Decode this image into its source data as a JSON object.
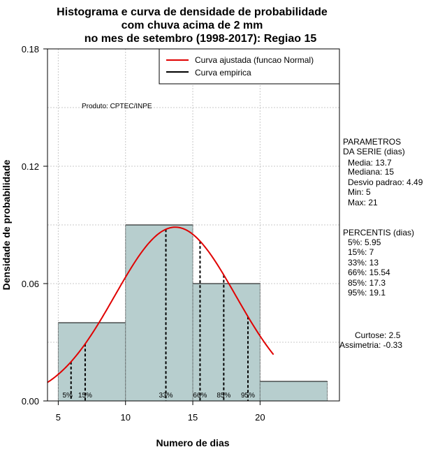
{
  "chart_data": {
    "type": "bar",
    "title_lines": [
      "Histograma e curva de densidade de probabilidade",
      "com chuva acima de 2 mm",
      "no mes de setembro (1998-2017): Regiao 15"
    ],
    "xlabel": "Numero de dias",
    "ylabel": "Densidade de probabilidade",
    "xlim": [
      4.2,
      25.9
    ],
    "ylim": [
      0,
      0.18
    ],
    "x_ticks": [
      5,
      10,
      15,
      20
    ],
    "x_tick_labels": [
      "5",
      "10",
      "15",
      "20"
    ],
    "y_ticks": [
      0,
      0.06,
      0.12,
      0.18
    ],
    "y_tick_labels": [
      "0.00",
      "0.06",
      "0.12",
      "0.18"
    ],
    "grid": true,
    "bins": [
      {
        "start": 5,
        "end": 10,
        "density": 0.04
      },
      {
        "start": 10,
        "end": 15,
        "density": 0.09
      },
      {
        "start": 15,
        "end": 20,
        "density": 0.06
      },
      {
        "start": 20,
        "end": 25,
        "density": 0.01
      }
    ],
    "bar_color": "#b7cece",
    "normal_curve": {
      "mean": 13.7,
      "sd": 4.49,
      "x_from": 4.2,
      "x_to": 21,
      "color": "#e00000"
    },
    "legend": {
      "position": "top-right",
      "entries": [
        {
          "label": "Curva ajustada (funcao Normal)",
          "color": "#e00000"
        },
        {
          "label": "Curva empirica",
          "color": "#000000"
        }
      ]
    },
    "percentiles": [
      {
        "label": "5%",
        "value": 5.95
      },
      {
        "label": "15%",
        "value": 7
      },
      {
        "label": "33%",
        "value": 13
      },
      {
        "label": "66%",
        "value": 15.54
      },
      {
        "label": "85%",
        "value": 17.3
      },
      {
        "label": "95%",
        "value": 19.1
      }
    ],
    "annotations": {
      "produto": "Produto: CPTEC/INPE",
      "parametros_title_1": "PARAMETROS",
      "parametros_title_2": "DA SERIE (dias)",
      "parametros": [
        "Media: 13.7",
        "Mediana: 15",
        "Desvio padrao: 4.49",
        "Min: 5",
        "Max: 21"
      ],
      "percentis_title": "PERCENTIS (dias)",
      "percentis": [
        "5%: 5.95",
        "15%: 7",
        "33%: 13",
        "66%: 15.54",
        "85%: 17.3",
        "95%: 19.1"
      ],
      "curtose": "Curtose: 2.5",
      "assimetria": "Assimetria: -0.33"
    }
  }
}
